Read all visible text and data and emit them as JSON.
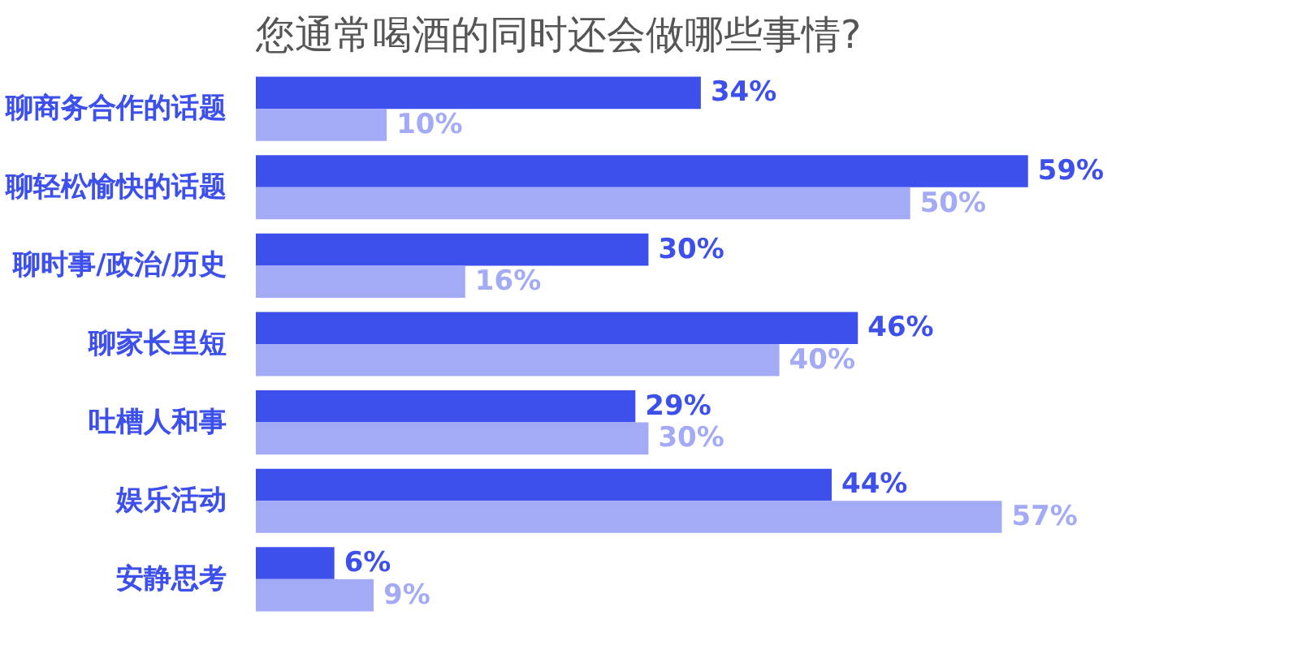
{
  "chart_data": {
    "type": "bar",
    "orientation": "horizontal",
    "title": "您通常喝酒的同时还会做哪些事情?",
    "categories": [
      "聊商务合作的话题",
      "聊轻松愉快的话题",
      "聊时事/政治/历史",
      "聊家长里短",
      "吐槽人和事",
      "娱乐活动",
      "安静思考"
    ],
    "series": [
      {
        "color": "#3d50ec",
        "values": [
          34,
          59,
          30,
          46,
          29,
          44,
          6
        ],
        "value_labels": [
          "34%",
          "59%",
          "30%",
          "46%",
          "29%",
          "44%",
          "6%"
        ]
      },
      {
        "color": "#a3abf6",
        "values": [
          10,
          50,
          16,
          40,
          30,
          57,
          9
        ],
        "value_labels": [
          "10%",
          "50%",
          "16%",
          "40%",
          "30%",
          "57%",
          "9%"
        ]
      }
    ],
    "grid": false
  }
}
